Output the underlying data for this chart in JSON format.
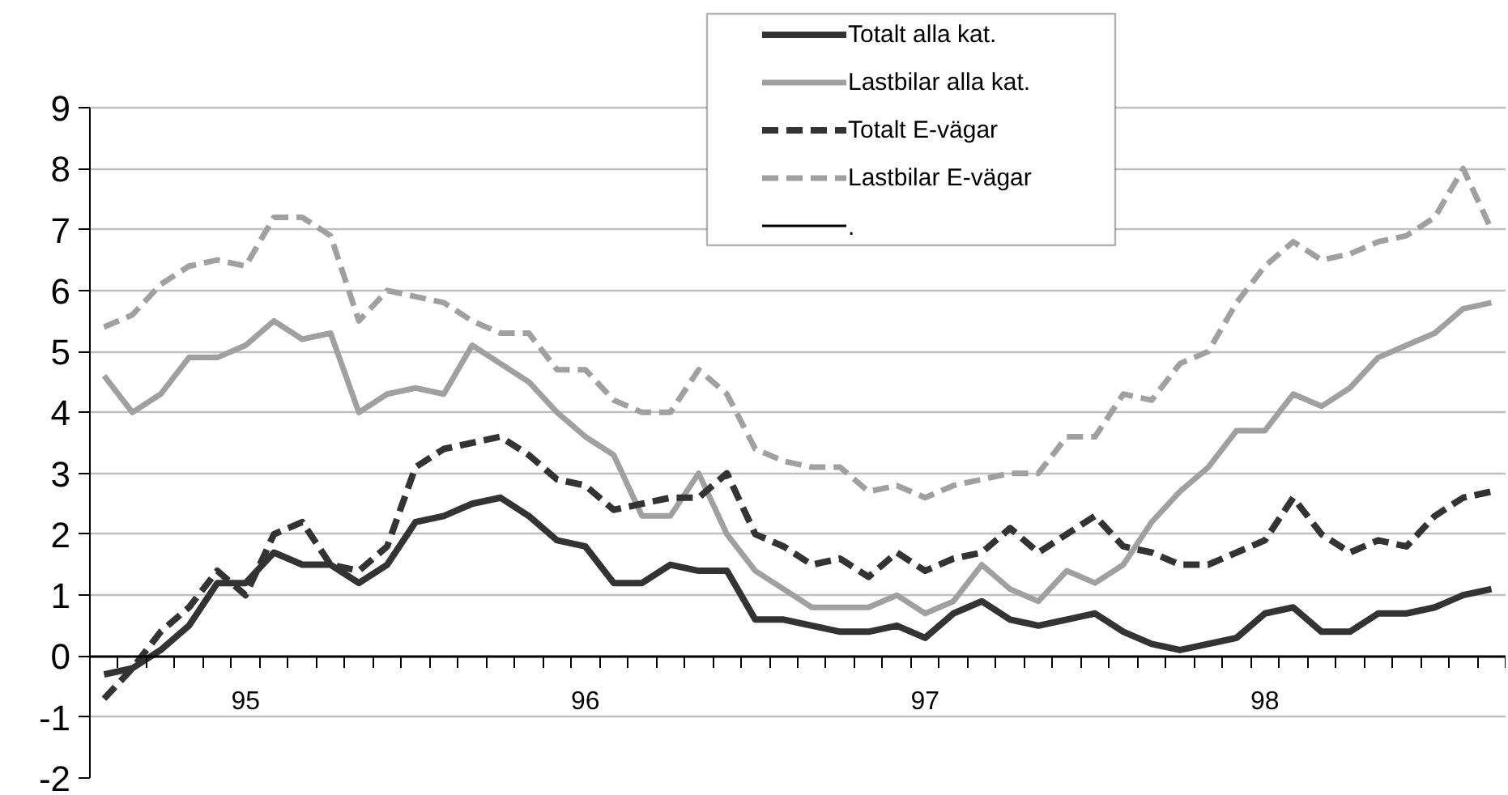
{
  "chart_data": {
    "type": "line",
    "categories": [
      null,
      null,
      null,
      null,
      null,
      "95",
      null,
      null,
      null,
      null,
      null,
      null,
      null,
      null,
      null,
      null,
      null,
      "96",
      null,
      null,
      null,
      null,
      null,
      null,
      null,
      null,
      null,
      null,
      null,
      "97",
      null,
      null,
      null,
      null,
      null,
      null,
      null,
      null,
      null,
      null,
      null,
      "98",
      null,
      null,
      null,
      null,
      null,
      null,
      null,
      null
    ],
    "series": [
      {
        "name": "Totalt alla kat.",
        "color": "#333333",
        "line_style": "solid",
        "values": [
          -0.3,
          -0.2,
          0.1,
          0.5,
          1.2,
          1.2,
          1.7,
          1.5,
          1.5,
          1.2,
          1.5,
          2.2,
          2.3,
          2.5,
          2.6,
          2.3,
          1.9,
          1.8,
          1.2,
          1.2,
          1.5,
          1.4,
          1.4,
          0.6,
          0.6,
          0.5,
          0.4,
          0.4,
          0.5,
          0.3,
          0.7,
          0.9,
          0.6,
          0.5,
          0.6,
          0.7,
          0.4,
          0.2,
          0.1,
          0.2,
          0.3,
          0.7,
          0.8,
          0.4,
          0.4,
          0.7,
          0.7,
          0.8,
          1.0,
          1.1
        ]
      },
      {
        "name": "Lastbilar alla kat.",
        "color": "#a0a0a0",
        "line_style": "solid",
        "values": [
          4.6,
          4.0,
          4.3,
          4.9,
          4.9,
          5.1,
          5.5,
          5.2,
          5.3,
          4.0,
          4.3,
          4.4,
          4.3,
          5.1,
          4.8,
          4.5,
          4.0,
          3.6,
          3.3,
          2.3,
          2.3,
          3.0,
          2.0,
          1.4,
          1.1,
          0.8,
          0.8,
          0.8,
          1.0,
          0.7,
          0.9,
          1.5,
          1.1,
          0.9,
          1.4,
          1.2,
          1.5,
          2.2,
          2.7,
          3.1,
          3.7,
          3.7,
          4.3,
          4.1,
          4.4,
          4.9,
          5.1,
          5.3,
          5.7,
          5.8
        ]
      },
      {
        "name": "Totalt E-vägar",
        "color": "#333333",
        "line_style": "dashed",
        "values": [
          -0.7,
          -0.2,
          0.4,
          0.8,
          1.4,
          1.0,
          2.0,
          2.2,
          1.5,
          1.4,
          1.8,
          3.1,
          3.4,
          3.5,
          3.6,
          3.3,
          2.9,
          2.8,
          2.4,
          2.5,
          2.6,
          2.6,
          3.0,
          2.0,
          1.8,
          1.5,
          1.6,
          1.3,
          1.7,
          1.4,
          1.6,
          1.7,
          2.1,
          1.7,
          2.0,
          2.3,
          1.8,
          1.7,
          1.5,
          1.5,
          1.7,
          1.9,
          2.6,
          2.0,
          1.7,
          1.9,
          1.8,
          2.3,
          2.6,
          2.7
        ]
      },
      {
        "name": "Lastbilar E-vägar",
        "color": "#a0a0a0",
        "line_style": "dashed",
        "values": [
          5.4,
          5.6,
          6.1,
          6.4,
          6.5,
          6.4,
          7.2,
          7.2,
          6.9,
          5.5,
          6.0,
          5.9,
          5.8,
          5.5,
          5.3,
          5.3,
          4.7,
          4.7,
          4.2,
          4.0,
          4.0,
          4.7,
          4.3,
          3.4,
          3.2,
          3.1,
          3.1,
          2.7,
          2.8,
          2.6,
          2.8,
          2.9,
          3.0,
          3.0,
          3.6,
          3.6,
          4.3,
          4.2,
          4.8,
          5.0,
          5.8,
          6.4,
          6.8,
          6.5,
          6.6,
          6.8,
          6.9,
          7.2,
          8.0,
          7.0
        ]
      },
      {
        "name": ".",
        "color": "#000000",
        "line_style": "solid",
        "values": [
          null,
          null,
          null,
          null,
          null,
          null,
          null,
          null,
          null,
          null,
          null,
          null,
          null,
          null,
          null,
          null,
          null,
          null,
          null,
          null,
          null,
          null,
          null,
          null,
          null,
          null,
          null,
          null,
          null,
          null,
          null,
          null,
          null,
          null,
          null,
          null,
          null,
          null,
          null,
          null,
          null,
          null,
          null,
          null,
          null,
          null,
          null,
          null,
          null,
          null
        ]
      }
    ],
    "ylim": [
      -2,
      9
    ],
    "yticks": [
      -2,
      -1,
      0,
      1,
      2,
      3,
      4,
      5,
      6,
      7,
      8,
      9
    ],
    "grid": "y",
    "legend": "top",
    "marker": "none"
  }
}
